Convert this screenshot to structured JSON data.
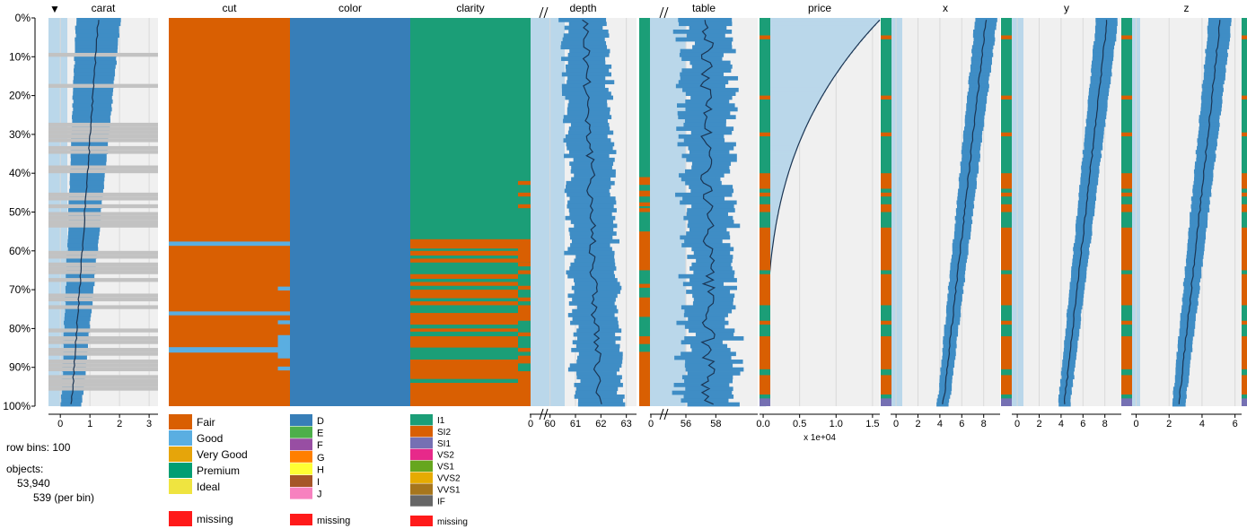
{
  "chart_data": {
    "type": "tableplot",
    "sort_indicator": "▼",
    "row_axis": {
      "ticks": [
        "0%",
        "10%",
        "20%",
        "30%",
        "40%",
        "50%",
        "60%",
        "70%",
        "80%",
        "90%",
        "100%"
      ]
    },
    "info": {
      "row_bins_label": "row bins: 100",
      "objects_label": "objects:",
      "objects_total": "53,940",
      "objects_per_bin": "539 (per bin)"
    },
    "missing_label": "missing",
    "colors": {
      "bar": "#3f8dc5",
      "light_band": "#bad7ea",
      "background": "#f0f0f0",
      "mean_line": "#1b3553",
      "missing": "#ff1a1a",
      "gray_bin": "#c2c2c2",
      "small_missing": "#6fb1d8"
    },
    "numeric_columns": [
      {
        "name": "carat",
        "ticks": [
          "0",
          "1",
          "2",
          "3"
        ],
        "range": [
          -0.4,
          3.3
        ],
        "mean_top": 1.28,
        "mean_bottom": 0.38,
        "sd_top": 0.75,
        "sd_bottom": 0.35
      },
      {
        "name": "depth",
        "ticks": [
          "60",
          "61",
          "62",
          "63"
        ],
        "range": [
          59.2,
          63.4
        ],
        "broken_axis": true,
        "zero_label": "0",
        "mean_top": 61.4,
        "mean_bottom": 61.9,
        "sd_top": 0.85,
        "sd_bottom": 0.9
      },
      {
        "name": "table",
        "ticks": [
          "56",
          "58"
        ],
        "range": [
          53.6,
          60.8
        ],
        "broken_axis": true,
        "zero_label": "0",
        "mean_top": 57.4,
        "mean_bottom": 57.5,
        "sd_top": 1.6,
        "sd_bottom": 1.6
      },
      {
        "name": "price",
        "ticks": [
          "0.0",
          "0.5",
          "1.0",
          "1.5"
        ],
        "range": [
          -0.05,
          1.6
        ],
        "multiplier_label": "x 1e+04",
        "mean_top": 1.6,
        "mean_bottom": 0.04,
        "sd_top": 0.0,
        "sd_bottom": 0.0
      },
      {
        "name": "x",
        "ticks": [
          "0",
          "2",
          "4",
          "6",
          "8"
        ],
        "range": [
          -0.5,
          9.5
        ],
        "mean_top": 8.2,
        "mean_bottom": 4.3,
        "sd_top": 1.0,
        "sd_bottom": 0.55
      },
      {
        "name": "y",
        "ticks": [
          "0",
          "2",
          "4",
          "6",
          "8"
        ],
        "range": [
          -0.5,
          9.5
        ],
        "mean_top": 8.2,
        "mean_bottom": 4.3,
        "sd_top": 1.0,
        "sd_bottom": 0.55
      },
      {
        "name": "z",
        "ticks": [
          "0",
          "2",
          "4",
          "6"
        ],
        "range": [
          -0.3,
          6.4
        ],
        "mean_top": 5.1,
        "mean_bottom": 2.6,
        "sd_top": 0.7,
        "sd_bottom": 0.4
      }
    ],
    "categorical_columns": [
      {
        "name": "cut",
        "legend": [
          {
            "label": "Fair",
            "color": "#d95f02"
          },
          {
            "label": "Good",
            "color": "#5aaee1"
          },
          {
            "label": "Very Good",
            "color": "#e6a50a"
          },
          {
            "label": "Premium",
            "color": "#029e73"
          },
          {
            "label": "Ideal",
            "color": "#efe440"
          }
        ]
      },
      {
        "name": "color",
        "legend": [
          {
            "label": "D",
            "color": "#377eb8"
          },
          {
            "label": "E",
            "color": "#4daf4a"
          },
          {
            "label": "F",
            "color": "#984ea3"
          },
          {
            "label": "G",
            "color": "#ff7f00"
          },
          {
            "label": "H",
            "color": "#ffff33"
          },
          {
            "label": "I",
            "color": "#a65628"
          },
          {
            "label": "J",
            "color": "#f781bf"
          }
        ]
      },
      {
        "name": "clarity",
        "legend": [
          {
            "label": "I1",
            "color": "#1b9e77"
          },
          {
            "label": "SI2",
            "color": "#d95f02"
          },
          {
            "label": "SI1",
            "color": "#7570b3"
          },
          {
            "label": "VS2",
            "color": "#e7298a"
          },
          {
            "label": "VS1",
            "color": "#66a61e"
          },
          {
            "label": "VVS2",
            "color": "#e6ab02"
          },
          {
            "label": "VVS1",
            "color": "#a6761d"
          },
          {
            "label": "IF",
            "color": "#666666"
          }
        ]
      }
    ]
  }
}
